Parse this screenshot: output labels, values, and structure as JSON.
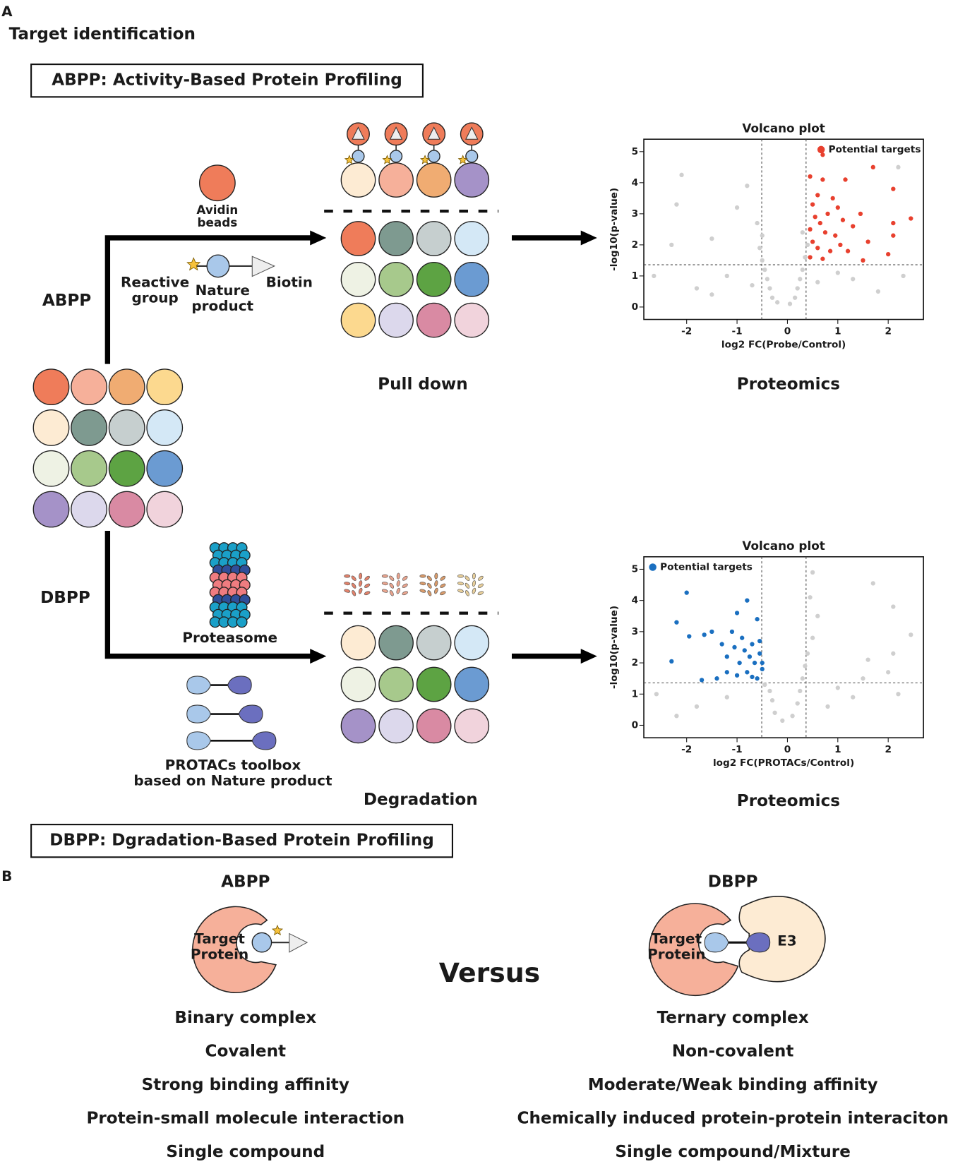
{
  "header": {
    "panel_a": "A",
    "title": "Target identification",
    "abpp_box": "ABPP: Activity-Based Protein Profiling",
    "dbpp_box": "DBPP: Dgradation-Based Protein Profiling",
    "panel_b": "B"
  },
  "abpp": {
    "label": "ABPP",
    "avidin": [
      "Avidin",
      "beads"
    ],
    "reactive": [
      "Reactive",
      "group"
    ],
    "nature": [
      "Nature",
      "product"
    ],
    "biotin": "Biotin",
    "pull_down": "Pull down",
    "proteomics": "Proteomics"
  },
  "dbpp": {
    "label": "DBPP",
    "proteasome": "Proteasome",
    "protacs": [
      "PROTACs toolbox",
      "based on Nature product"
    ],
    "degradation": "Degradation",
    "proteomics": "Proteomics"
  },
  "volcano_plots": [
    {
      "type": "scatter",
      "title": "Volcano plot",
      "xlabel": "log2 FC(Probe/Control)",
      "ylabel": "-log10(p-value)",
      "legend": "upper right",
      "xlim": [
        -2.85,
        2.7
      ],
      "ylim": [
        -0.4,
        5.4
      ],
      "xticks": [
        -2,
        -1,
        0,
        1,
        2
      ],
      "yticks": [
        0,
        1,
        2,
        3,
        4,
        5
      ],
      "vlines": [
        -0.51,
        0.37
      ],
      "hline": 1.36,
      "series": [
        {
          "color": "#cfcfcf",
          "x": [
            -2.1,
            -2.2,
            -2.3,
            -2.65,
            -1.5,
            -1.0,
            -0.8,
            -0.6,
            -0.5,
            -0.55,
            -0.5,
            -0.45,
            -0.4,
            -0.35,
            -0.3,
            -0.2,
            0.05,
            0.15,
            0.2,
            0.25,
            0.3,
            0.35,
            0.4,
            0.3,
            -1.2,
            -1.8,
            1.3,
            1.8,
            2.3,
            -0.7,
            0.6,
            1.0,
            2.2,
            -1.5
          ],
          "y": [
            4.25,
            3.3,
            2.0,
            1.0,
            2.2,
            3.2,
            3.9,
            2.7,
            2.3,
            1.9,
            1.5,
            1.2,
            0.9,
            0.6,
            0.3,
            0.15,
            0.1,
            0.3,
            0.6,
            0.9,
            1.2,
            1.6,
            2.0,
            2.4,
            1.0,
            0.6,
            0.9,
            0.5,
            1.0,
            0.7,
            0.8,
            1.1,
            4.5,
            0.4
          ]
        },
        {
          "name": "Potential targets",
          "color": "#e8402e",
          "x": [
            0.7,
            1.7,
            0.45,
            0.7,
            1.15,
            2.1,
            0.6,
            0.9,
            0.5,
            1.0,
            0.8,
            1.45,
            0.55,
            2.45,
            0.65,
            1.1,
            1.3,
            2.1,
            0.45,
            0.75,
            0.95,
            0.5,
            1.6,
            2.1,
            0.6,
            0.85,
            1.2,
            0.45,
            1.5,
            2.0,
            0.7,
            1.05
          ],
          "y": [
            4.9,
            4.5,
            4.2,
            4.1,
            4.1,
            3.8,
            3.6,
            3.5,
            3.3,
            3.2,
            3.0,
            3.0,
            2.9,
            2.85,
            2.7,
            2.8,
            2.6,
            2.7,
            2.5,
            2.4,
            2.3,
            2.1,
            2.1,
            2.3,
            1.9,
            1.8,
            1.8,
            1.6,
            1.5,
            1.7,
            1.55,
            2.0
          ]
        }
      ]
    },
    {
      "type": "scatter",
      "title": "Volcano plot",
      "xlabel": "log2 FC(PROTACs/Control)",
      "ylabel": "-log10(p-value)",
      "legend": "upper left",
      "xlim": [
        -2.85,
        2.7
      ],
      "ylim": [
        -0.4,
        5.4
      ],
      "xticks": [
        -2,
        -1,
        0,
        1,
        2
      ],
      "yticks": [
        0,
        1,
        2,
        3,
        4,
        5
      ],
      "vlines": [
        -0.51,
        0.37
      ],
      "hline": 1.36,
      "series": [
        {
          "color": "#cfcfcf",
          "x": [
            0.5,
            0.45,
            0.6,
            0.5,
            1.7,
            2.1,
            2.45,
            2.1,
            1.6,
            2.0,
            0.4,
            0.35,
            0.3,
            0.25,
            0.2,
            0.1,
            -0.1,
            -0.25,
            -0.3,
            -0.35,
            -0.45,
            -2.6,
            -1.8,
            1.0,
            1.3,
            -1.2,
            0.8,
            1.5,
            2.2,
            -2.2
          ],
          "y": [
            4.9,
            4.1,
            3.5,
            2.8,
            4.55,
            3.8,
            2.9,
            2.3,
            2.1,
            1.7,
            2.3,
            1.9,
            1.5,
            1.1,
            0.7,
            0.3,
            0.15,
            0.4,
            0.8,
            1.1,
            1.3,
            1.0,
            0.6,
            1.2,
            0.9,
            0.9,
            0.6,
            1.5,
            1.0,
            0.3
          ]
        },
        {
          "name": "Potential targets",
          "color": "#1a6fc0",
          "x": [
            -2.0,
            -2.2,
            -1.95,
            -1.65,
            -2.3,
            -1.5,
            -1.3,
            -1.0,
            -0.8,
            -0.6,
            -1.1,
            -0.9,
            -0.7,
            -0.55,
            -1.2,
            -0.95,
            -0.65,
            -0.5,
            -0.8,
            -1.4,
            -0.6,
            -1.0,
            -0.75,
            -0.55,
            -1.7,
            -0.85,
            -1.2,
            -0.7,
            -0.5,
            -1.05
          ],
          "y": [
            4.25,
            3.3,
            2.85,
            2.9,
            2.05,
            3.0,
            2.6,
            3.6,
            4.0,
            3.4,
            3.0,
            2.8,
            2.6,
            2.3,
            2.2,
            2.0,
            2.0,
            1.8,
            1.7,
            1.5,
            1.5,
            1.6,
            2.2,
            2.7,
            1.45,
            2.4,
            1.7,
            1.55,
            2.0,
            2.5
          ]
        }
      ]
    }
  ],
  "comparison": {
    "abpp_title": "ABPP",
    "dbpp_title": "DBPP",
    "target": [
      "Target",
      "Protein"
    ],
    "e3": "E3",
    "versus": "Versus",
    "abpp_features": [
      "Binary complex",
      "Covalent",
      "Strong binding affinity",
      "Protein-small molecule interaction",
      "Single compound"
    ],
    "dbpp_features": [
      "Ternary complex",
      "Non-covalent",
      "Moderate/Weak binding affinity",
      "Chemically induced protein-protein interaciton",
      "Single compound/Mixture"
    ]
  }
}
